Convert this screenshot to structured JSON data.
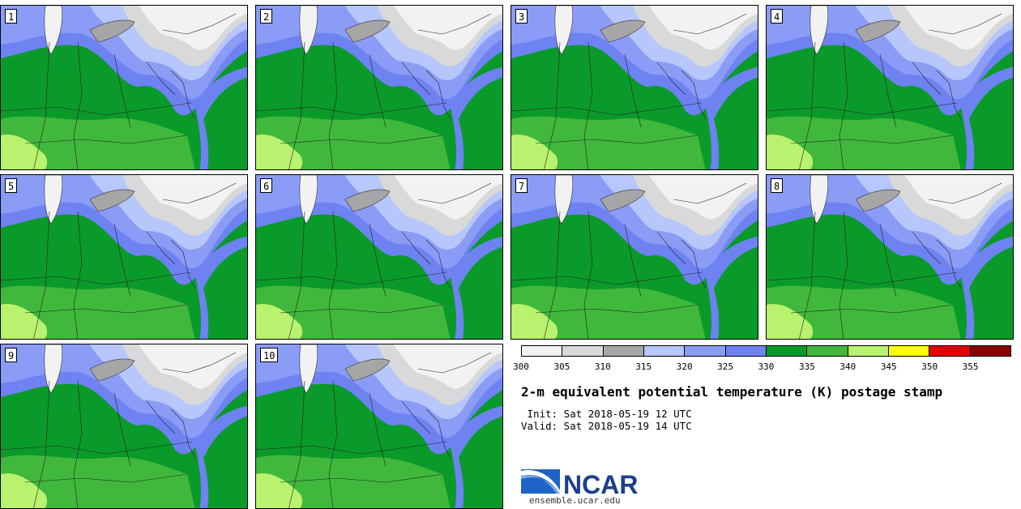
{
  "panels": [
    {
      "label": "1"
    },
    {
      "label": "2"
    },
    {
      "label": "3"
    },
    {
      "label": "4"
    },
    {
      "label": "5"
    },
    {
      "label": "6"
    },
    {
      "label": "7"
    },
    {
      "label": "8"
    },
    {
      "label": "9"
    },
    {
      "label": "10"
    }
  ],
  "colorbar": {
    "colors": [
      "#f2f2f2",
      "#d9d9d9",
      "#a6a6a6",
      "#b7c6fb",
      "#8b9cf7",
      "#6e82f2",
      "#0a9a2a",
      "#40b83c",
      "#b8f26e",
      "#ffff00",
      "#e60000",
      "#8b0000"
    ],
    "ticks": [
      "300",
      "305",
      "310",
      "315",
      "320",
      "325",
      "330",
      "335",
      "340",
      "345",
      "350",
      "355"
    ]
  },
  "title": "2-m equivalent potential temperature (K) postage stamp",
  "init_line": " Init: Sat 2018-05-19 12 UTC",
  "valid_line": "Valid: Sat 2018-05-19 14 UTC",
  "logo_text": "NCAR",
  "url": "ensemble.ucar.edu"
}
